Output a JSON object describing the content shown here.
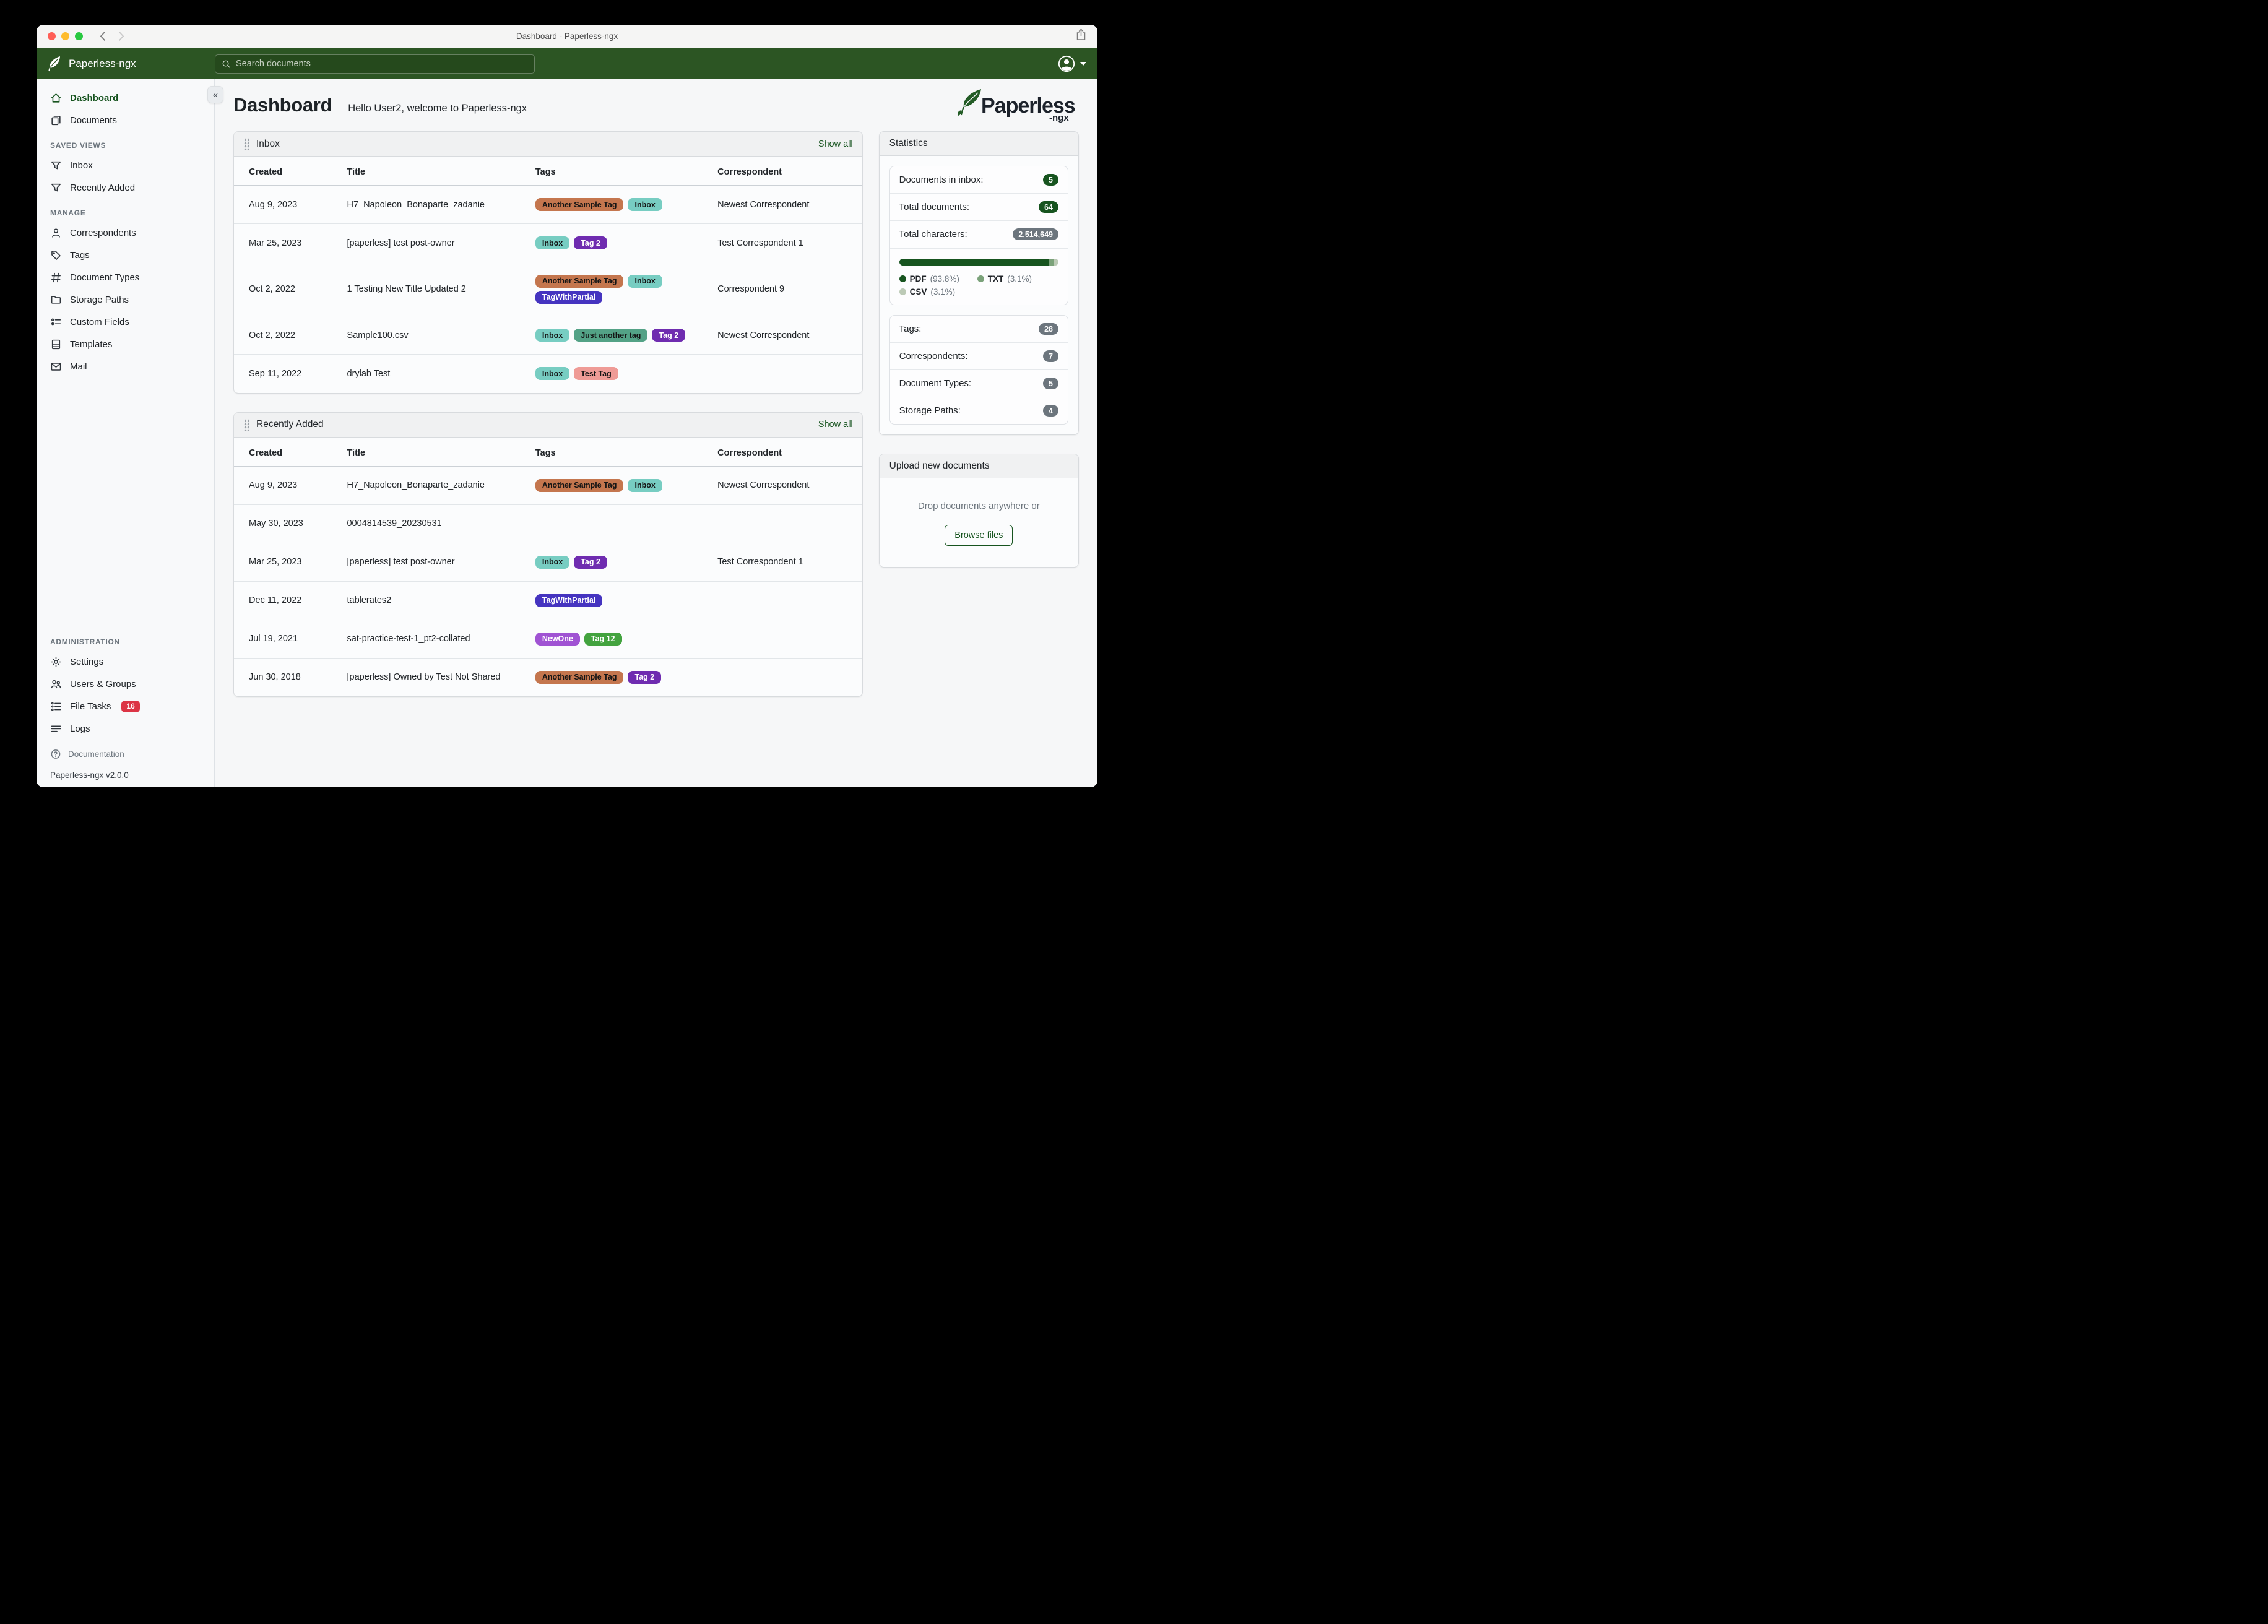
{
  "window": {
    "title": "Dashboard - Paperless-ngx"
  },
  "header": {
    "brand": "Paperless-ngx",
    "search": {
      "placeholder": "Search documents"
    }
  },
  "sidebar": {
    "primary": [
      {
        "label": "Dashboard",
        "icon": "home",
        "active": true
      },
      {
        "label": "Documents",
        "icon": "documents",
        "active": false
      }
    ],
    "sections": [
      {
        "title": "SAVED VIEWS",
        "items": [
          {
            "label": "Inbox",
            "icon": "filter"
          },
          {
            "label": "Recently Added",
            "icon": "filter"
          }
        ]
      },
      {
        "title": "MANAGE",
        "items": [
          {
            "label": "Correspondents",
            "icon": "person"
          },
          {
            "label": "Tags",
            "icon": "tag"
          },
          {
            "label": "Document Types",
            "icon": "hash"
          },
          {
            "label": "Storage Paths",
            "icon": "folder"
          },
          {
            "label": "Custom Fields",
            "icon": "custom-fields"
          },
          {
            "label": "Templates",
            "icon": "template"
          },
          {
            "label": "Mail",
            "icon": "mail"
          }
        ]
      },
      {
        "title": "ADMINISTRATION",
        "items": [
          {
            "label": "Settings",
            "icon": "gear"
          },
          {
            "label": "Users & Groups",
            "icon": "users"
          },
          {
            "label": "File Tasks",
            "icon": "tasks",
            "badge": "16"
          },
          {
            "label": "Logs",
            "icon": "logs"
          }
        ]
      }
    ],
    "footer": {
      "documentation": "Documentation",
      "version": "Paperless-ngx v2.0.0"
    }
  },
  "main": {
    "title": "Dashboard",
    "subtitle": "Hello User2, welcome to Paperless-ngx"
  },
  "tags": {
    "Another Sample Tag": {
      "bg": "#c4764e",
      "fg": "#141414"
    },
    "Inbox": {
      "bg": "#77cdc2",
      "fg": "#141414"
    },
    "Tag 2": {
      "bg": "#6f2cb0",
      "fg": "#ffffff"
    },
    "TagWithPartial": {
      "bg": "#4534c0",
      "fg": "#ffffff"
    },
    "Just another tag": {
      "bg": "#53a286",
      "fg": "#141414"
    },
    "Test Tag": {
      "bg": "#ef9b96",
      "fg": "#141414"
    },
    "NewOne": {
      "bg": "#a053d3",
      "fg": "#ffffff"
    },
    "Tag 12": {
      "bg": "#43a33f",
      "fg": "#ffffff"
    }
  },
  "widgets": [
    {
      "title": "Inbox",
      "action": "Show all",
      "columns": [
        "Created",
        "Title",
        "Tags",
        "Correspondent"
      ],
      "rows": [
        {
          "created": "Aug 9, 2023",
          "title": "H7_Napoleon_Bonaparte_zadanie",
          "tags": [
            "Another Sample Tag",
            "Inbox"
          ],
          "correspondent": "Newest Correspondent"
        },
        {
          "created": "Mar 25, 2023",
          "title": "[paperless] test post-owner",
          "tags": [
            "Inbox",
            "Tag 2"
          ],
          "correspondent": "Test Correspondent 1"
        },
        {
          "created": "Oct 2, 2022",
          "title": "1 Testing New Title Updated 2",
          "tags": [
            "Another Sample Tag",
            "Inbox",
            "TagWithPartial"
          ],
          "correspondent": "Correspondent 9"
        },
        {
          "created": "Oct 2, 2022",
          "title": "Sample100.csv",
          "tags": [
            "Inbox",
            "Just another tag",
            "Tag 2"
          ],
          "correspondent": "Newest Correspondent"
        },
        {
          "created": "Sep 11, 2022",
          "title": "drylab Test",
          "tags": [
            "Inbox",
            "Test Tag"
          ],
          "correspondent": ""
        }
      ]
    },
    {
      "title": "Recently Added",
      "action": "Show all",
      "columns": [
        "Created",
        "Title",
        "Tags",
        "Correspondent"
      ],
      "rows": [
        {
          "created": "Aug 9, 2023",
          "title": "H7_Napoleon_Bonaparte_zadanie",
          "tags": [
            "Another Sample Tag",
            "Inbox"
          ],
          "correspondent": "Newest Correspondent"
        },
        {
          "created": "May 30, 2023",
          "title": "0004814539_20230531",
          "tags": [],
          "correspondent": ""
        },
        {
          "created": "Mar 25, 2023",
          "title": "[paperless] test post-owner",
          "tags": [
            "Inbox",
            "Tag 2"
          ],
          "correspondent": "Test Correspondent 1"
        },
        {
          "created": "Dec 11, 2022",
          "title": "tablerates2",
          "tags": [
            "TagWithPartial"
          ],
          "correspondent": ""
        },
        {
          "created": "Jul 19, 2021",
          "title": "sat-practice-test-1_pt2-collated",
          "tags": [
            "NewOne",
            "Tag 12"
          ],
          "correspondent": ""
        },
        {
          "created": "Jun 30, 2018",
          "title": "[paperless] Owned by Test Not Shared",
          "tags": [
            "Another Sample Tag",
            "Tag 2"
          ],
          "correspondent": ""
        }
      ]
    }
  ],
  "statistics": {
    "title": "Statistics",
    "rows_top": [
      {
        "label": "Documents in inbox:",
        "value": "5",
        "variant": "green"
      },
      {
        "label": "Total documents:",
        "value": "64",
        "variant": "green"
      },
      {
        "label": "Total characters:",
        "value": "2,514,649",
        "variant": "gray"
      }
    ],
    "file_type_breakdown": {
      "segments": [
        {
          "label": "PDF",
          "pct_text": "(93.8%)",
          "pct": 93.8,
          "color": "#17541f"
        },
        {
          "label": "TXT",
          "pct_text": "(3.1%)",
          "pct": 3.1,
          "color": "#7ba27a"
        },
        {
          "label": "CSV",
          "pct_text": "(3.1%)",
          "pct": 3.1,
          "color": "#bccab6"
        }
      ]
    },
    "rows_bottom": [
      {
        "label": "Tags:",
        "value": "28",
        "variant": "gray"
      },
      {
        "label": "Correspondents:",
        "value": "7",
        "variant": "gray"
      },
      {
        "label": "Document Types:",
        "value": "5",
        "variant": "gray"
      },
      {
        "label": "Storage Paths:",
        "value": "4",
        "variant": "gray"
      }
    ]
  },
  "upload": {
    "title": "Upload new documents",
    "hint": "Drop documents anywhere or",
    "button": "Browse files"
  },
  "colors": {
    "header_green": "#2c5523",
    "accent_green": "#17541f",
    "badge_red": "#dc3545",
    "badge_gray": "#6c757d"
  }
}
